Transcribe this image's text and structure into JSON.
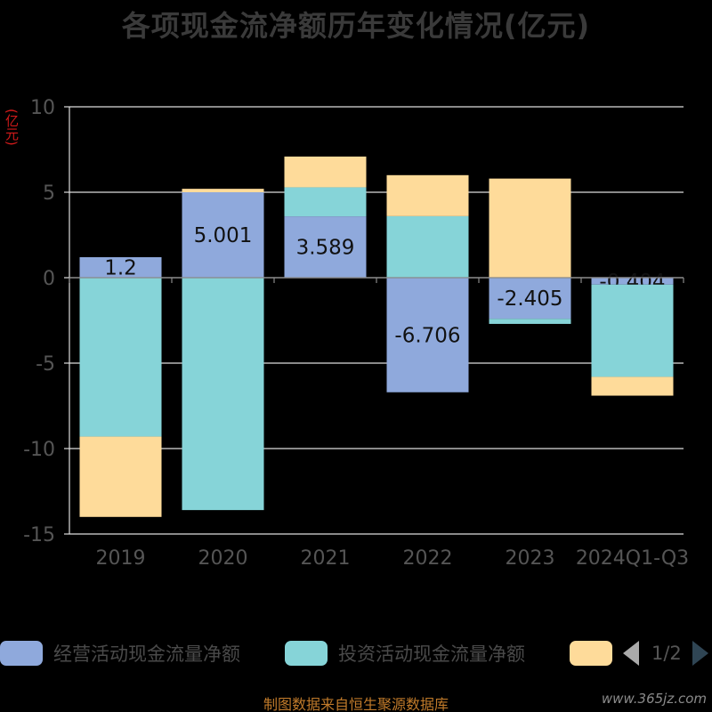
{
  "title": "各项现金流净额历年变化情况(亿元)",
  "y_unit": "(亿元)",
  "source": "制图数据来自恒生聚源数据库",
  "watermark": "www.365jz.com",
  "colors": {
    "operating": "#8fa9dc",
    "investing": "#86d4d8",
    "financing": "#fedb9a",
    "axis": "#dddddd",
    "tick_label": "#555555",
    "data_label": "#111111",
    "title": "#3a3a3a",
    "unit": "#d11a1a"
  },
  "legend": {
    "items": [
      {
        "label": "经营活动现金流量净额",
        "color": "#8fa9dc"
      },
      {
        "label": "投资活动现金流量净额",
        "color": "#86d4d8"
      },
      {
        "label": "",
        "color": "#fedb9a"
      }
    ],
    "pager_text": "1/2"
  },
  "chart_data": {
    "type": "bar",
    "stacked": true,
    "categories": [
      "2019",
      "2020",
      "2021",
      "2022",
      "2023",
      "2024Q1-Q3"
    ],
    "series": [
      {
        "name": "经营活动现金流量净额",
        "color": "#8fa9dc",
        "values": [
          1.2,
          5.001,
          3.589,
          -6.706,
          -2.405,
          -0.404
        ],
        "labels": [
          "1.2",
          "5.001",
          "3.589",
          "-6.706",
          "-2.405",
          "-0.404"
        ]
      },
      {
        "name": "投资活动现金流量净额",
        "color": "#86d4d8",
        "values": [
          -9.3,
          -13.6,
          1.7,
          3.6,
          -0.3,
          -5.4
        ],
        "labels": []
      },
      {
        "name": "",
        "color": "#fedb9a",
        "values": [
          -4.7,
          0.2,
          1.8,
          2.4,
          5.8,
          -1.1
        ],
        "labels": []
      }
    ],
    "yticks": [
      10,
      5,
      0,
      -5,
      -10,
      -15
    ],
    "ylim": [
      -15,
      10
    ],
    "grid": true,
    "legend_position": "bottom"
  }
}
